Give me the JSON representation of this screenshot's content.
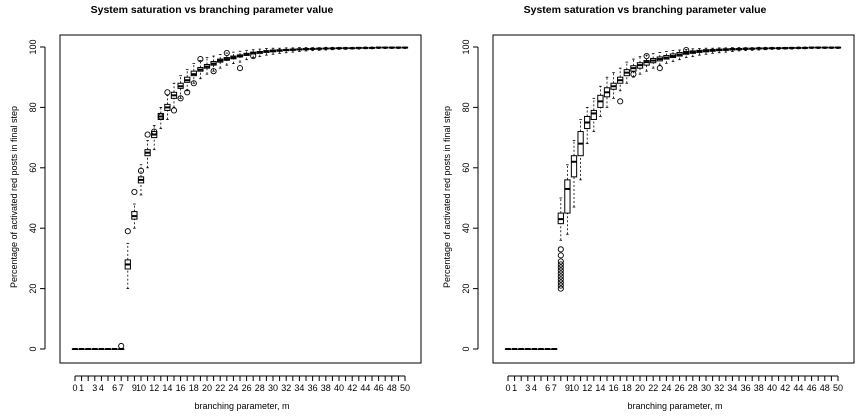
{
  "chart_data": [
    {
      "type": "box",
      "title": "System saturation vs branching parameter value",
      "xlabel": "branching parameter, m",
      "ylabel": "Percentage of activated red posts in final step",
      "ylim": [
        0,
        100
      ],
      "yticks": [
        "0",
        "20",
        "40",
        "60",
        "80",
        "100"
      ],
      "xlim": [
        0,
        50
      ],
      "xticks": [
        "0",
        "1",
        "3",
        "4",
        "6",
        "7",
        "9",
        "10",
        "12",
        "14",
        "16",
        "18",
        "20",
        "22",
        "24",
        "26",
        "28",
        "30",
        "32",
        "34",
        "36",
        "38",
        "40",
        "42",
        "44",
        "46",
        "48",
        "50"
      ],
      "x": [
        0,
        1,
        2,
        3,
        4,
        5,
        6,
        7,
        8,
        9,
        10,
        11,
        12,
        13,
        14,
        15,
        16,
        17,
        18,
        19,
        20,
        21,
        22,
        23,
        24,
        25,
        26,
        27,
        28,
        29,
        30,
        31,
        32,
        33,
        34,
        35,
        36,
        37,
        38,
        39,
        40,
        41,
        42,
        43,
        44,
        45,
        46,
        47,
        48,
        49,
        50
      ],
      "median": [
        0,
        0,
        0,
        0,
        0,
        0,
        0,
        0,
        28,
        44,
        56,
        65,
        71,
        77,
        80,
        84,
        87,
        89,
        91,
        92.5,
        93.5,
        94.5,
        95.5,
        96,
        96.5,
        97,
        97.5,
        98,
        98.2,
        98.5,
        98.7,
        98.8,
        99,
        99.1,
        99.2,
        99.3,
        99.4,
        99.4,
        99.5,
        99.5,
        99.6,
        99.6,
        99.6,
        99.7,
        99.7,
        99.7,
        99.8,
        99.8,
        99.8,
        99.8,
        99.8
      ],
      "q1": [
        0,
        0,
        0,
        0,
        0,
        0,
        0,
        0,
        26.5,
        43,
        55,
        64,
        70,
        76,
        79,
        83,
        86.3,
        88.3,
        90.5,
        92,
        93,
        94,
        95,
        95.6,
        96.1,
        96.7,
        97.2,
        97.7,
        97.9,
        98.2,
        98.4,
        98.6,
        98.8,
        98.9,
        99,
        99.1,
        99.2,
        99.3,
        99.4,
        99.4,
        99.5,
        99.5,
        99.5,
        99.6,
        99.6,
        99.6,
        99.7,
        99.7,
        99.7,
        99.7,
        99.7
      ],
      "q3": [
        0,
        0,
        0,
        0,
        0,
        0,
        0,
        0,
        29.5,
        45.5,
        57,
        66,
        72,
        78,
        81,
        85,
        88,
        90,
        92,
        93.2,
        94.2,
        95.2,
        96,
        96.5,
        97,
        97.4,
        97.9,
        98.3,
        98.5,
        98.8,
        99,
        99.1,
        99.2,
        99.3,
        99.4,
        99.5,
        99.5,
        99.6,
        99.6,
        99.7,
        99.7,
        99.7,
        99.7,
        99.8,
        99.8,
        99.8,
        99.9,
        99.9,
        99.9,
        99.9,
        99.9
      ],
      "whisker_low": [
        0,
        0,
        0,
        0,
        0,
        0,
        0,
        0,
        20,
        40,
        51,
        60,
        66,
        73,
        76,
        80,
        83,
        85.5,
        88,
        89.5,
        91,
        92,
        93,
        94,
        94.5,
        95,
        95.8,
        96.5,
        96.8,
        97.3,
        97.6,
        97.9,
        98.1,
        98.3,
        98.5,
        98.7,
        98.8,
        98.9,
        99,
        99.1,
        99.2,
        99.2,
        99.3,
        99.3,
        99.4,
        99.4,
        99.5,
        99.5,
        99.5,
        99.5,
        99.5
      ],
      "whisker_high": [
        0,
        0,
        0,
        0,
        0,
        0,
        0,
        0,
        35,
        48,
        61,
        69,
        74,
        80,
        84,
        88,
        90.5,
        92.5,
        94.5,
        95.5,
        96.5,
        97,
        97.5,
        98,
        98.3,
        98.6,
        98.9,
        99.1,
        99.3,
        99.5,
        99.6,
        99.6,
        99.7,
        99.7,
        99.8,
        99.8,
        99.8,
        99.8,
        99.9,
        99.9,
        99.9,
        99.9,
        99.9,
        99.9,
        100,
        100,
        100,
        100,
        100,
        100,
        100
      ],
      "outliers": [
        [
          7,
          1
        ],
        [
          8,
          39
        ],
        [
          9,
          52
        ],
        [
          10,
          59
        ],
        [
          11,
          71
        ],
        [
          12,
          72
        ],
        [
          13,
          77
        ],
        [
          14,
          85
        ],
        [
          15,
          79
        ],
        [
          16,
          83
        ],
        [
          17,
          85
        ],
        [
          18,
          88
        ],
        [
          19,
          96
        ],
        [
          21,
          92
        ],
        [
          23,
          98
        ],
        [
          25,
          93
        ],
        [
          27,
          97
        ]
      ]
    },
    {
      "type": "box",
      "title": "System saturation vs branching parameter value",
      "xlabel": "branching parameter, m",
      "ylabel": "Percentage of activated red posts in final step",
      "ylim": [
        0,
        100
      ],
      "yticks": [
        "0",
        "20",
        "40",
        "60",
        "80",
        "100"
      ],
      "xlim": [
        0,
        50
      ],
      "xticks": [
        "0",
        "1",
        "3",
        "4",
        "6",
        "7",
        "9",
        "10",
        "12",
        "14",
        "16",
        "18",
        "20",
        "22",
        "24",
        "26",
        "28",
        "30",
        "32",
        "34",
        "36",
        "38",
        "40",
        "42",
        "44",
        "46",
        "48",
        "50"
      ],
      "x": [
        0,
        1,
        2,
        3,
        4,
        5,
        6,
        7,
        8,
        9,
        10,
        11,
        12,
        13,
        14,
        15,
        16,
        17,
        18,
        19,
        20,
        21,
        22,
        23,
        24,
        25,
        26,
        27,
        28,
        29,
        30,
        31,
        32,
        33,
        34,
        35,
        36,
        37,
        38,
        39,
        40,
        41,
        42,
        43,
        44,
        45,
        46,
        47,
        48,
        49,
        50
      ],
      "median": [
        0,
        0,
        0,
        0,
        0,
        0,
        0,
        0,
        43,
        53,
        62,
        68,
        75,
        78,
        82,
        85,
        87,
        89,
        91.5,
        93,
        94,
        95,
        95.5,
        96,
        96.5,
        97,
        97.5,
        98,
        98.2,
        98.5,
        98.7,
        98.8,
        99,
        99.1,
        99.2,
        99.3,
        99.4,
        99.4,
        99.5,
        99.5,
        99.6,
        99.6,
        99.6,
        99.7,
        99.7,
        99.7,
        99.8,
        99.8,
        99.8,
        99.8,
        99.8
      ],
      "q1": [
        0,
        0,
        0,
        0,
        0,
        0,
        0,
        0,
        41.5,
        45,
        57,
        64,
        73,
        76,
        80,
        83.5,
        86,
        88,
        90.5,
        92,
        93,
        94,
        94.8,
        95.4,
        96,
        96.5,
        97,
        97.6,
        97.9,
        98.2,
        98.4,
        98.6,
        98.8,
        98.9,
        99,
        99.1,
        99.2,
        99.3,
        99.4,
        99.4,
        99.5,
        99.5,
        99.5,
        99.6,
        99.6,
        99.6,
        99.7,
        99.7,
        99.7,
        99.7,
        99.7
      ],
      "q3": [
        0,
        0,
        0,
        0,
        0,
        0,
        0,
        0,
        45,
        56,
        64,
        72,
        77,
        79,
        84,
        86.5,
        88,
        90,
        92.5,
        93.8,
        94.8,
        95.5,
        96.2,
        96.7,
        97.2,
        97.7,
        98.2,
        98.5,
        98.7,
        98.9,
        99.1,
        99.2,
        99.3,
        99.4,
        99.5,
        99.5,
        99.6,
        99.6,
        99.7,
        99.7,
        99.7,
        99.7,
        99.8,
        99.8,
        99.8,
        99.8,
        99.9,
        99.9,
        99.9,
        99.9,
        99.9
      ],
      "whisker_low": [
        0,
        0,
        0,
        0,
        0,
        0,
        0,
        0,
        36,
        38,
        47,
        56,
        68,
        72,
        77,
        80,
        83,
        85.5,
        88,
        90,
        91,
        92,
        93,
        94,
        94.6,
        95.2,
        95.8,
        96.5,
        96.8,
        97.3,
        97.6,
        97.9,
        98.1,
        98.3,
        98.5,
        98.7,
        98.8,
        98.9,
        99,
        99.1,
        99.2,
        99.2,
        99.3,
        99.3,
        99.4,
        99.4,
        99.5,
        99.5,
        99.5,
        99.5,
        99.5
      ],
      "whisker_high": [
        0,
        0,
        0,
        0,
        0,
        0,
        0,
        0,
        50,
        61,
        69,
        76,
        80,
        83,
        87,
        90,
        91.5,
        93,
        95,
        96,
        96.8,
        97.3,
        97.8,
        98.2,
        98.5,
        98.8,
        99,
        99.2,
        99.4,
        99.5,
        99.6,
        99.6,
        99.7,
        99.7,
        99.8,
        99.8,
        99.8,
        99.8,
        99.9,
        99.9,
        99.9,
        99.9,
        99.9,
        99.9,
        100,
        100,
        100,
        100,
        100,
        100,
        100
      ],
      "outliers": [
        [
          8,
          20
        ],
        [
          8,
          21
        ],
        [
          8,
          22
        ],
        [
          8,
          23
        ],
        [
          8,
          24
        ],
        [
          8,
          25
        ],
        [
          8,
          26
        ],
        [
          8,
          27
        ],
        [
          8,
          28
        ],
        [
          8,
          29
        ],
        [
          8,
          31
        ],
        [
          8,
          33
        ],
        [
          17,
          82
        ],
        [
          19,
          91
        ],
        [
          21,
          97
        ],
        [
          23,
          93
        ],
        [
          27,
          99
        ]
      ]
    }
  ]
}
